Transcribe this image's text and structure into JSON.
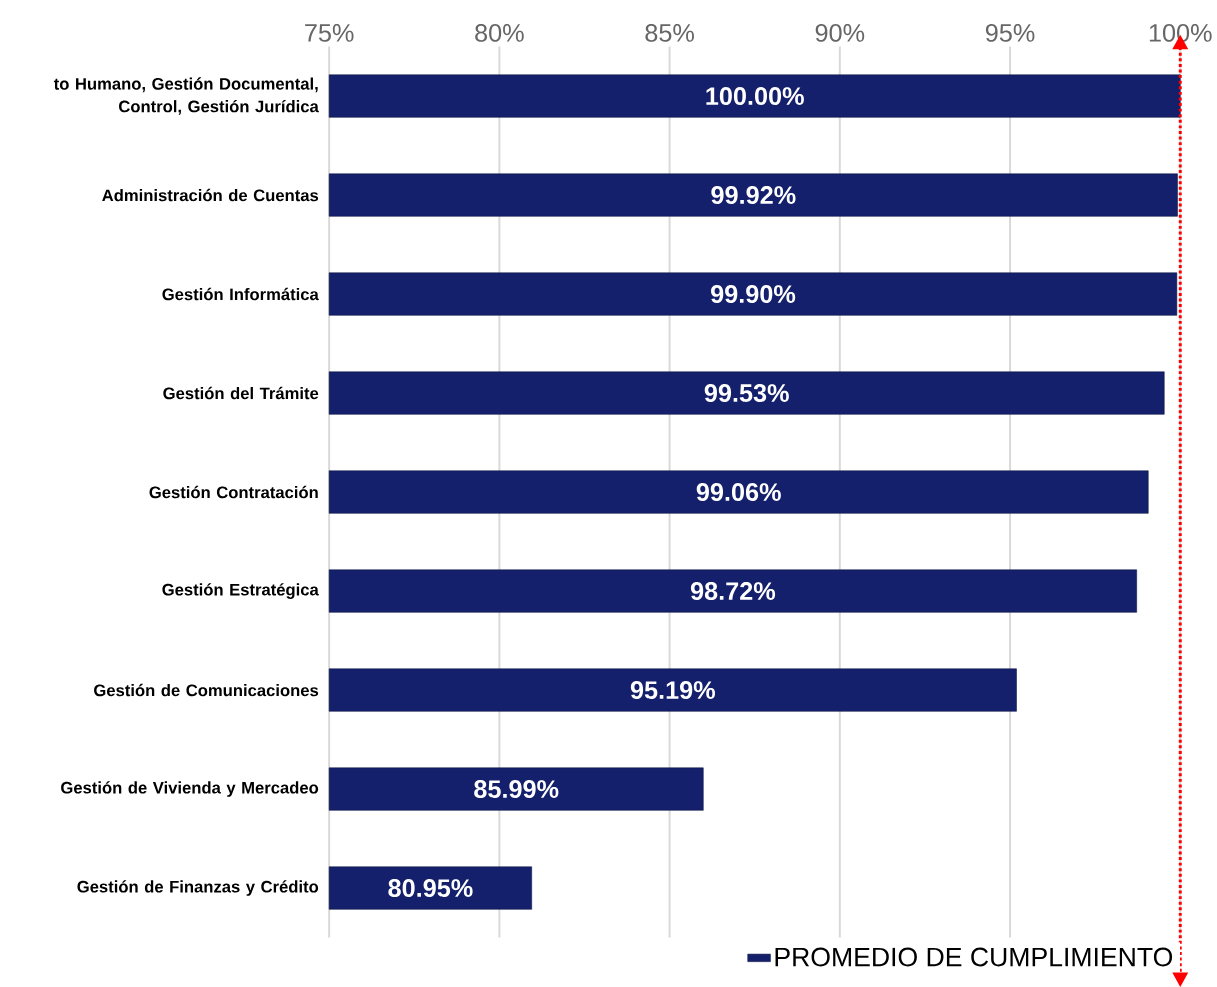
{
  "chart_data": {
    "type": "bar",
    "orientation": "horizontal",
    "categories": [
      "to Humano, Gestión Documental, Control, Gestión Jurídica",
      "Administración de Cuentas",
      "Gestión Informática",
      "Gestión del Trámite",
      "Gestión Contratación",
      "Gestión Estratégica",
      "Gestión de Comunicaciones",
      "Gestión de Vivienda y Mercadeo",
      "Gestión de Finanzas y Crédito"
    ],
    "series": [
      {
        "name": "PROMEDIO DE CUMPLIMIENTO",
        "color": "#14206b",
        "values": [
          100.0,
          99.92,
          99.9,
          99.53,
          99.06,
          98.72,
          95.19,
          85.99,
          80.95
        ],
        "value_labels": [
          "100.00%",
          "99.92%",
          "99.90%",
          "99.53%",
          "99.06%",
          "98.72%",
          "95.19%",
          "85.99%",
          "80.95%"
        ]
      }
    ],
    "xlim": [
      75,
      100
    ],
    "xticks": [
      {
        "value": 75,
        "label": "75%"
      },
      {
        "value": 80,
        "label": "80%"
      },
      {
        "value": 85,
        "label": "85%"
      },
      {
        "value": 90,
        "label": "90%"
      },
      {
        "value": 95,
        "label": "95%"
      },
      {
        "value": 100,
        "label": "100%"
      }
    ],
    "grid": "x",
    "legend": "bottom right",
    "ref_lines": [
      {
        "axis": "x",
        "value": 100,
        "color": "#ff0000",
        "line_style": "dotted"
      }
    ]
  }
}
